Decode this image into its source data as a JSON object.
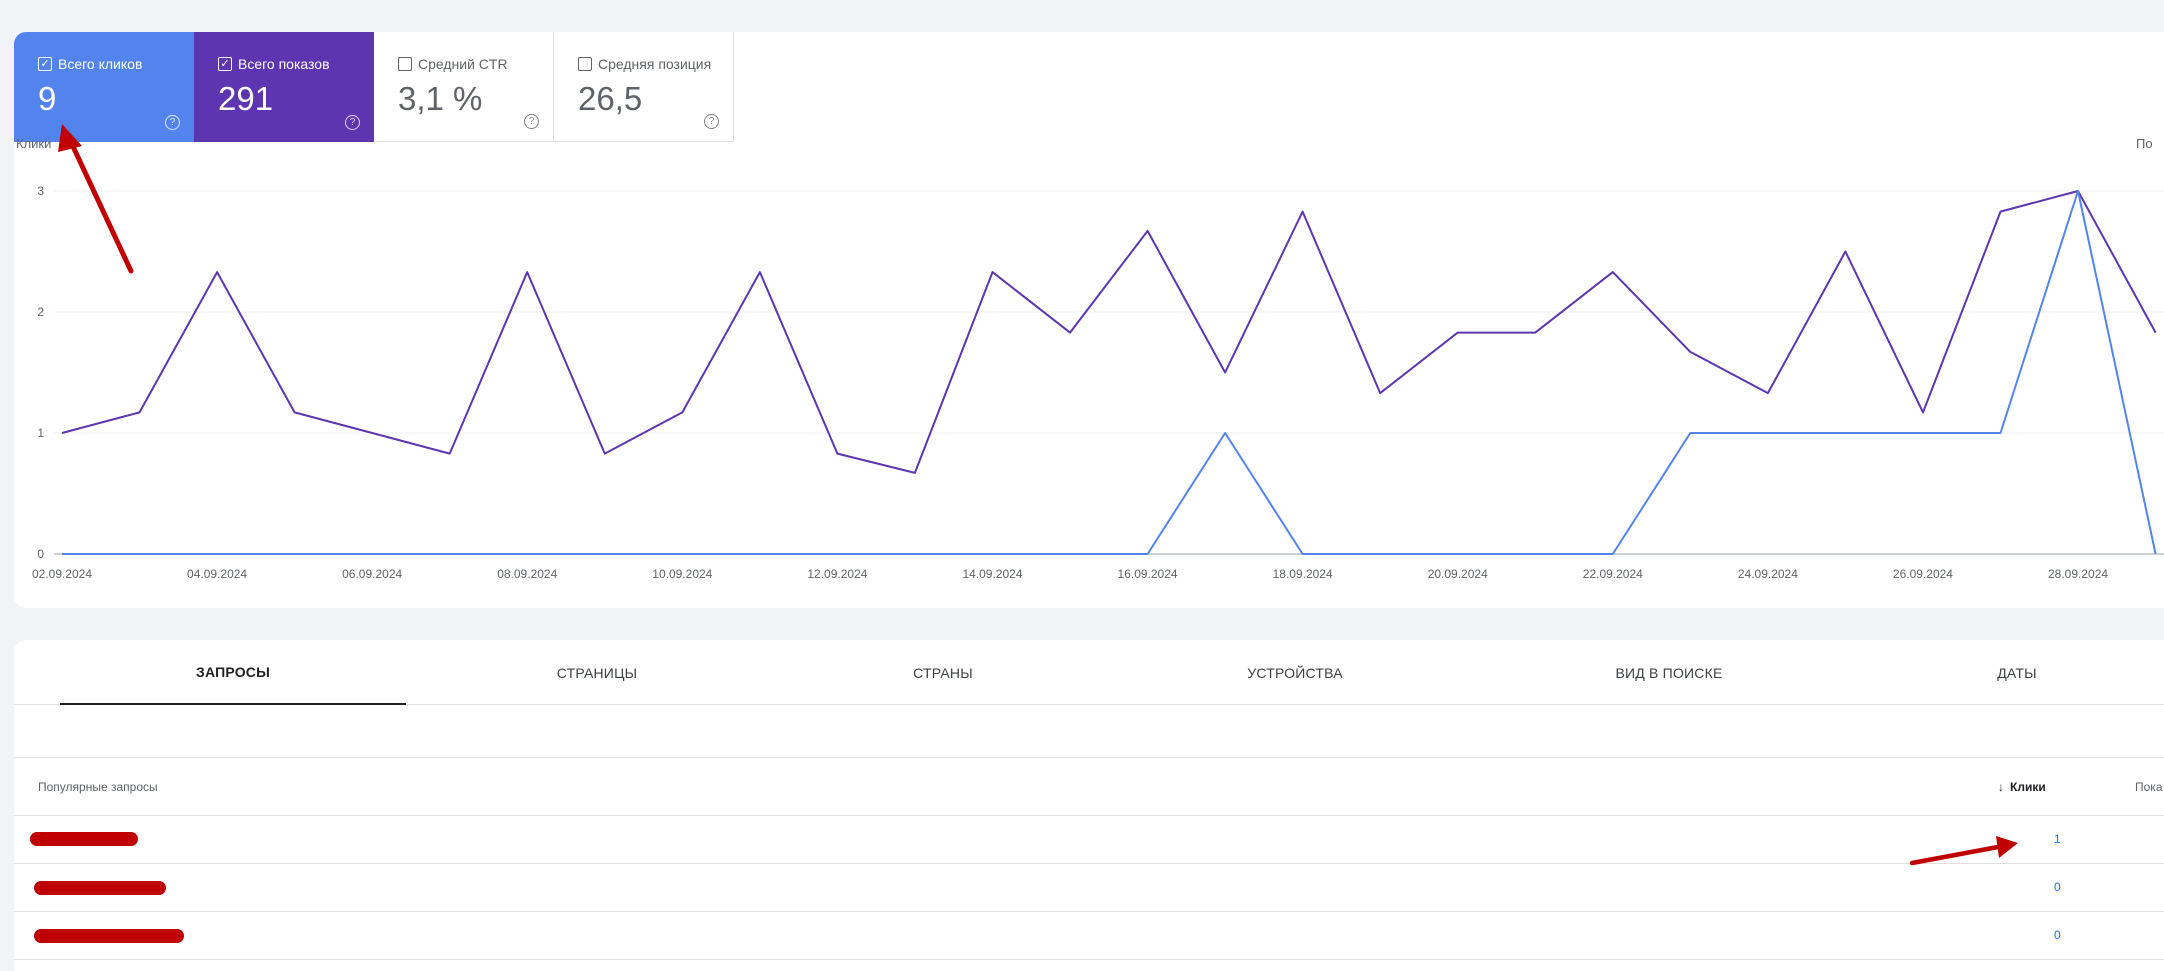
{
  "metrics": [
    {
      "label": "Всего кликов",
      "value": "9",
      "checked": true,
      "color": "#5384ed"
    },
    {
      "label": "Всего показов",
      "value": "291",
      "checked": true,
      "color": "#5e35b1"
    },
    {
      "label": "Средний CTR",
      "value": "3,1 %",
      "checked": false
    },
    {
      "label": "Средняя позиция",
      "value": "26,5",
      "checked": false
    }
  ],
  "chart_data": {
    "type": "line",
    "axis_left_title": "Клики",
    "axis_right_title": "По",
    "y_ticks": [
      "3",
      "2",
      "1",
      "0"
    ],
    "ylim": [
      0,
      3
    ],
    "x_tick_labels": [
      "02.09.2024",
      "04.09.2024",
      "06.09.2024",
      "08.09.2024",
      "10.09.2024",
      "12.09.2024",
      "14.09.2024",
      "16.09.2024",
      "18.09.2024",
      "20.09.2024",
      "22.09.2024",
      "24.09.2024",
      "26.09.2024",
      "28.09.2024"
    ],
    "x": [
      "02.09",
      "03.09",
      "04.09",
      "05.09",
      "06.09",
      "07.09",
      "08.09",
      "09.09",
      "10.09",
      "11.09",
      "12.09",
      "13.09",
      "14.09",
      "15.09",
      "16.09",
      "17.09",
      "18.09",
      "19.09",
      "20.09",
      "21.09",
      "22.09",
      "23.09",
      "24.09",
      "25.09",
      "26.09",
      "27.09",
      "28.09",
      "29.09"
    ],
    "grid": true,
    "series": [
      {
        "color": "#5e35b1",
        "values": [
          1.0,
          1.17,
          2.33,
          1.17,
          1.0,
          0.83,
          2.33,
          0.83,
          1.17,
          2.33,
          0.83,
          0.67,
          2.33,
          1.83,
          2.67,
          1.5,
          2.83,
          1.33,
          1.83,
          1.83,
          2.33,
          1.67,
          1.33,
          2.5,
          1.17,
          2.83,
          3.0,
          1.83
        ]
      },
      {
        "color": "#5384ed",
        "values": [
          0,
          0,
          0,
          0,
          0,
          0,
          0,
          0,
          0,
          0,
          0,
          0,
          0,
          0,
          0,
          1,
          0,
          0,
          0,
          0,
          0,
          1,
          1,
          1,
          1,
          1,
          3,
          0
        ]
      }
    ]
  },
  "tabs": [
    "ЗАПРОСЫ",
    "СТРАНИЦЫ",
    "СТРАНЫ",
    "УСТРОЙСТВА",
    "ВИД В ПОИСКЕ",
    "ДАТЫ"
  ],
  "table": {
    "header_query": "Популярные запросы",
    "header_clicks": "Клики",
    "header_impressions": "Пока",
    "rows": [
      {
        "clicks": "1"
      },
      {
        "clicks": "0"
      },
      {
        "clicks": "0"
      }
    ]
  },
  "icons": {
    "checkbox_checked": "☑",
    "help": "?",
    "sort_arrow": "↓"
  }
}
